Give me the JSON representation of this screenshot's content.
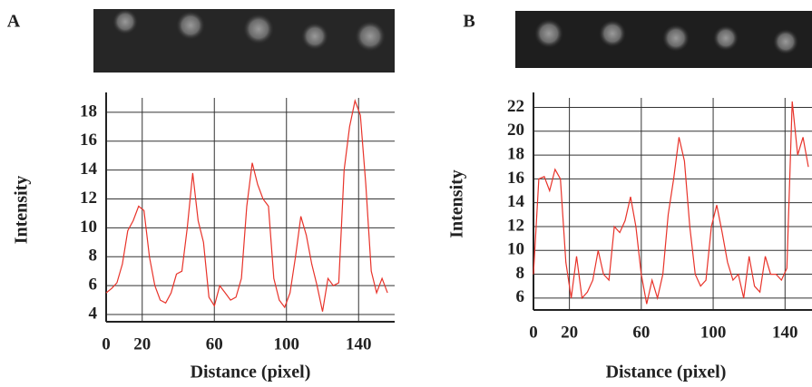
{
  "chart_data": [
    {
      "type": "line",
      "panel_label": "A",
      "x_label": "Distance (pixel)",
      "y_label": "Intensity",
      "xlim": [
        0,
        160
      ],
      "xticks": [
        0,
        20,
        60,
        100,
        140
      ],
      "ylim": [
        3.5,
        19
      ],
      "yticks": [
        4,
        6,
        8,
        10,
        12,
        14,
        16,
        18
      ],
      "grid": true,
      "color": "#e8332a",
      "x": [
        0,
        3,
        6,
        9,
        12,
        15,
        18,
        21,
        24,
        27,
        30,
        33,
        36,
        39,
        42,
        45,
        48,
        51,
        54,
        57,
        60,
        63,
        66,
        69,
        72,
        75,
        78,
        81,
        84,
        87,
        90,
        93,
        96,
        99,
        102,
        105,
        108,
        111,
        114,
        117,
        120,
        123,
        126,
        129,
        132,
        135,
        138,
        141,
        144,
        147,
        150,
        153,
        156
      ],
      "values": [
        5.5,
        5.8,
        6.2,
        7.5,
        9.8,
        10.5,
        11.5,
        11.2,
        8,
        6,
        5,
        4.8,
        5.5,
        6.8,
        7,
        10,
        13.8,
        10.5,
        9,
        5.2,
        4.6,
        6,
        5.5,
        5,
        5.2,
        6.5,
        11.5,
        14.5,
        13,
        12,
        11.5,
        6.5,
        5,
        4.5,
        5.5,
        8,
        10.8,
        9.5,
        7.5,
        6,
        4.2,
        6.5,
        6,
        6.2,
        14,
        17,
        18.8,
        17.8,
        13,
        7,
        5.5,
        6.5,
        5.5
      ]
    },
    {
      "type": "line",
      "panel_label": "B",
      "x_label": "Distance (pixel)",
      "y_label": "Intensity",
      "xlim": [
        0,
        155
      ],
      "xticks": [
        0,
        20,
        60,
        100,
        140
      ],
      "ylim": [
        5,
        22.8
      ],
      "yticks": [
        6,
        8,
        10,
        12,
        14,
        16,
        18,
        20,
        22
      ],
      "grid": true,
      "color": "#e8332a",
      "x": [
        0,
        3,
        6,
        9,
        12,
        15,
        18,
        21,
        24,
        27,
        30,
        33,
        36,
        39,
        42,
        45,
        48,
        51,
        54,
        57,
        60,
        63,
        66,
        69,
        72,
        75,
        78,
        81,
        84,
        87,
        90,
        93,
        96,
        99,
        102,
        105,
        108,
        111,
        114,
        117,
        120,
        123,
        126,
        129,
        132,
        135,
        138,
        141,
        144,
        147,
        150,
        153
      ],
      "values": [
        8,
        16,
        16.2,
        15,
        16.8,
        16,
        9,
        6,
        9.5,
        6,
        6.5,
        7.5,
        10,
        8,
        7.5,
        12,
        11.5,
        12.5,
        14.5,
        12,
        8,
        5.5,
        7.5,
        6,
        8,
        13,
        16,
        19.5,
        17.5,
        12,
        8,
        7,
        7.5,
        12,
        13.8,
        11.5,
        9,
        7.5,
        8,
        6,
        9.5,
        7,
        6.5,
        9.5,
        8,
        8,
        7.5,
        8.5,
        22.5,
        18,
        19.5,
        17
      ]
    }
  ]
}
